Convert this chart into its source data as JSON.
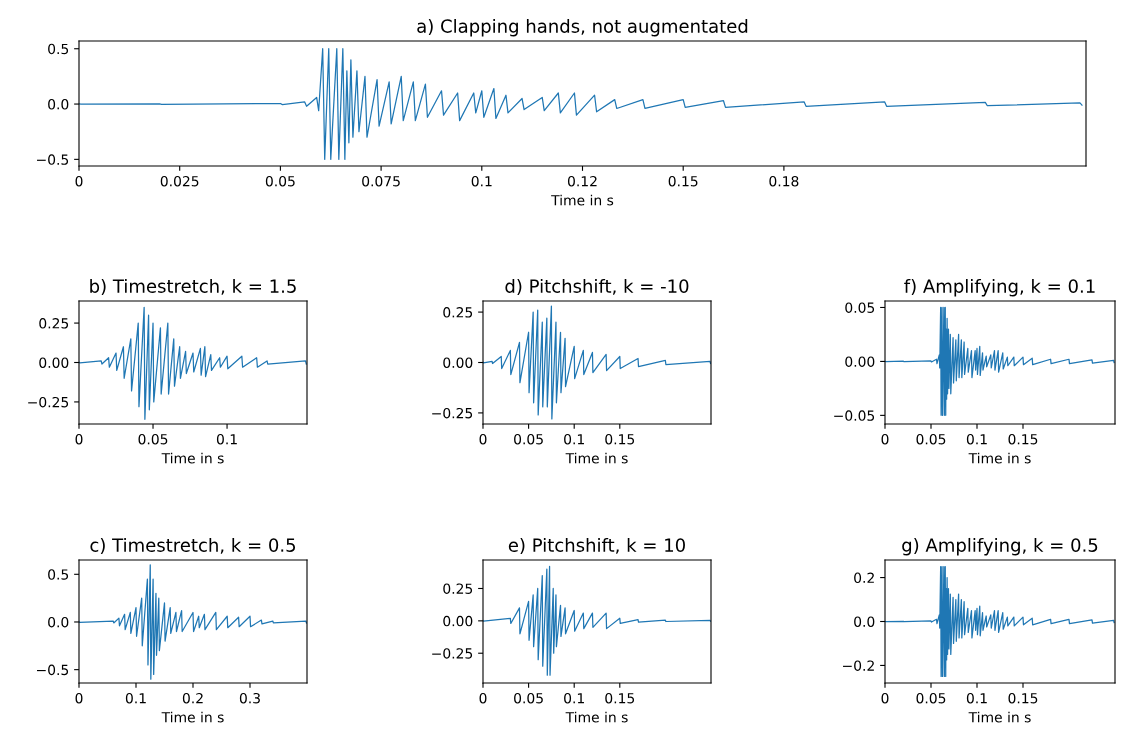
{
  "chart_data": [
    {
      "type": "line",
      "title": "a) Clapping hands, not augmentated",
      "xlabel": "Time in s",
      "xlim": [
        0,
        0.25
      ],
      "ylim": [
        -0.56,
        0.57
      ],
      "xticks": [
        0,
        0.025,
        0.05,
        0.075,
        0.1,
        {
          "value": 0.125,
          "label": "0.12"
        },
        0.15,
        {
          "value": 0.175,
          "label": "0.18"
        }
      ],
      "yticks": [
        {
          "value": -0.5,
          "label": "−0.5"
        },
        {
          "value": 0,
          "label": "0.0"
        },
        {
          "value": 0.5,
          "label": "0.5"
        }
      ],
      "x": [
        0,
        0.0005,
        0.02,
        0.0205,
        0.05,
        0.0505,
        0.056,
        0.0565,
        0.059,
        0.0595,
        0.0605,
        0.061,
        0.062,
        0.0625,
        0.064,
        0.0645,
        0.0655,
        0.066,
        0.0665,
        0.067,
        0.0675,
        0.068,
        0.069,
        0.0695,
        0.071,
        0.0715,
        0.074,
        0.0745,
        0.077,
        0.0775,
        0.08,
        0.0805,
        0.083,
        0.0835,
        0.086,
        0.0865,
        0.09,
        0.0905,
        0.094,
        0.0945,
        0.098,
        0.0985,
        0.1,
        0.1005,
        0.103,
        0.1035,
        0.106,
        0.1065,
        0.11,
        0.1105,
        0.115,
        0.1155,
        0.119,
        0.1195,
        0.123,
        0.1235,
        0.128,
        0.1285,
        0.133,
        0.1335,
        0.14,
        0.1405,
        0.15,
        0.1505,
        0.16,
        0.1605,
        0.18,
        0.1805,
        0.2,
        0.2005,
        0.225,
        0.2255,
        0.2485,
        0.249
      ],
      "series": [
        {
          "color": "#1f77b4",
          "values": [
            0.001,
            -0.001,
            0.002,
            -0.002,
            0.005,
            -0.005,
            0.02,
            -0.02,
            0.06,
            -0.06,
            0.5,
            -0.5,
            0.5,
            -0.5,
            0.5,
            -0.5,
            0.5,
            -0.5,
            0.3,
            -0.35,
            0.4,
            -0.3,
            0.3,
            -0.25,
            0.25,
            -0.3,
            0.22,
            -0.2,
            0.2,
            -0.18,
            0.25,
            -0.15,
            0.2,
            -0.15,
            0.18,
            -0.12,
            0.12,
            -0.1,
            0.1,
            -0.15,
            0.1,
            -0.08,
            0.12,
            -0.12,
            0.14,
            -0.13,
            0.08,
            -0.08,
            0.05,
            -0.05,
            0.06,
            -0.06,
            0.1,
            -0.08,
            0.1,
            -0.1,
            0.08,
            -0.07,
            0.04,
            -0.04,
            0.04,
            -0.04,
            0.04,
            -0.03,
            0.03,
            -0.03,
            0.02,
            -0.02,
            0.02,
            -0.02,
            0.015,
            -0.015,
            0.01,
            -0.01
          ]
        }
      ]
    },
    {
      "type": "line",
      "title": "b) Timestretch, k = 1.5",
      "xlabel": "Time in s",
      "xlim": [
        0,
        0.154
      ],
      "ylim": [
        -0.39,
        0.39
      ],
      "xticks": [
        0,
        0.05,
        0.1
      ],
      "yticks": [
        {
          "value": -0.25,
          "label": "−0.25"
        },
        {
          "value": 0,
          "label": "0.00"
        },
        {
          "value": 0.25,
          "label": "0.25"
        }
      ],
      "x": [
        0,
        0.0005,
        0.015,
        0.0155,
        0.02,
        0.0205,
        0.025,
        0.0255,
        0.03,
        0.0305,
        0.035,
        0.0355,
        0.04,
        0.0405,
        0.044,
        0.0445,
        0.047,
        0.0475,
        0.05,
        0.0505,
        0.055,
        0.0555,
        0.06,
        0.0605,
        0.064,
        0.0645,
        0.068,
        0.0685,
        0.072,
        0.0725,
        0.077,
        0.0775,
        0.082,
        0.0825,
        0.085,
        0.0855,
        0.089,
        0.0895,
        0.095,
        0.0955,
        0.1,
        0.1005,
        0.11,
        0.1105,
        0.12,
        0.1205,
        0.127,
        0.1275,
        0.153,
        0.1535
      ],
      "series": [
        {
          "color": "#1f77b4",
          "values": [
            0.002,
            -0.002,
            0.01,
            -0.01,
            0.03,
            -0.03,
            0.06,
            -0.05,
            0.1,
            -0.1,
            0.15,
            -0.18,
            0.25,
            -0.28,
            0.35,
            -0.36,
            0.3,
            -0.3,
            0.25,
            -0.25,
            0.22,
            -0.2,
            0.25,
            -0.2,
            0.15,
            -0.15,
            0.1,
            -0.1,
            0.07,
            -0.07,
            0.06,
            -0.06,
            0.09,
            -0.08,
            0.1,
            -0.09,
            0.05,
            -0.05,
            0.03,
            -0.03,
            0.04,
            -0.04,
            0.04,
            -0.03,
            0.03,
            -0.03,
            0.01,
            -0.01,
            0.01,
            -0.01
          ]
        }
      ]
    },
    {
      "type": "line",
      "title": "d) Pitchshift, k = -10",
      "xlabel": "Time in s",
      "xlim": [
        0,
        0.25
      ],
      "ylim": [
        -0.305,
        0.305
      ],
      "xticks": [
        0,
        0.05,
        0.1,
        0.15
      ],
      "yticks": [
        {
          "value": -0.25,
          "label": "−0.25"
        },
        {
          "value": 0,
          "label": "0.00"
        },
        {
          "value": 0.25,
          "label": "0.25"
        }
      ],
      "x": [
        0,
        0.0005,
        0.01,
        0.0105,
        0.02,
        0.0205,
        0.03,
        0.0305,
        0.04,
        0.0405,
        0.05,
        0.0505,
        0.055,
        0.0555,
        0.06,
        0.0605,
        0.065,
        0.0655,
        0.07,
        0.0705,
        0.075,
        0.0755,
        0.08,
        0.0805,
        0.085,
        0.0855,
        0.09,
        0.0905,
        0.1,
        0.1005,
        0.11,
        0.1105,
        0.12,
        0.1205,
        0.135,
        0.1355,
        0.15,
        0.1505,
        0.17,
        0.1705,
        0.2,
        0.2005,
        0.249,
        0.2495
      ],
      "series": [
        {
          "color": "#1f77b4",
          "values": [
            0.002,
            -0.002,
            0.005,
            -0.005,
            0.03,
            -0.03,
            0.06,
            -0.06,
            0.1,
            -0.1,
            0.15,
            -0.15,
            0.25,
            -0.2,
            0.26,
            -0.26,
            0.2,
            -0.22,
            0.22,
            -0.22,
            0.28,
            -0.28,
            0.2,
            -0.2,
            0.15,
            -0.15,
            0.12,
            -0.12,
            0.08,
            -0.08,
            0.06,
            -0.06,
            0.05,
            -0.05,
            0.04,
            -0.04,
            0.03,
            -0.03,
            0.02,
            -0.02,
            0.01,
            -0.01,
            0.005,
            -0.005
          ]
        }
      ]
    },
    {
      "type": "line",
      "title": "f) Amplifying, k = 0.1",
      "xlabel": "Time in s",
      "xlim": [
        0,
        0.25
      ],
      "ylim": [
        -0.058,
        0.056
      ],
      "xticks": [
        0,
        0.05,
        0.1,
        0.15
      ],
      "yticks": [
        {
          "value": -0.05,
          "label": "−0.05"
        },
        {
          "value": 0,
          "label": "0.00"
        },
        {
          "value": 0.05,
          "label": "0.05"
        }
      ],
      "x": [
        0,
        0.0005,
        0.02,
        0.0205,
        0.05,
        0.0505,
        0.056,
        0.0565,
        0.059,
        0.0595,
        0.0605,
        0.061,
        0.062,
        0.0625,
        0.064,
        0.0645,
        0.0655,
        0.066,
        0.0665,
        0.067,
        0.0675,
        0.068,
        0.069,
        0.0695,
        0.071,
        0.0715,
        0.074,
        0.0745,
        0.077,
        0.0775,
        0.08,
        0.0805,
        0.083,
        0.0835,
        0.086,
        0.0865,
        0.09,
        0.0905,
        0.094,
        0.0945,
        0.098,
        0.0985,
        0.1,
        0.1005,
        0.103,
        0.1035,
        0.106,
        0.1065,
        0.11,
        0.1105,
        0.115,
        0.1155,
        0.119,
        0.1195,
        0.123,
        0.1235,
        0.128,
        0.1285,
        0.133,
        0.1335,
        0.14,
        0.1405,
        0.15,
        0.1505,
        0.16,
        0.1605,
        0.18,
        0.1805,
        0.2,
        0.2005,
        0.225,
        0.2255,
        0.2485,
        0.249
      ],
      "series": [
        {
          "color": "#1f77b4",
          "values": [
            0.0001,
            -0.0001,
            0.0002,
            -0.0002,
            0.0005,
            -0.0005,
            0.002,
            -0.002,
            0.006,
            -0.006,
            0.05,
            -0.05,
            0.05,
            -0.05,
            0.05,
            -0.05,
            0.05,
            -0.05,
            0.03,
            -0.035,
            0.04,
            -0.03,
            0.03,
            -0.025,
            0.025,
            -0.03,
            0.022,
            -0.02,
            0.02,
            -0.018,
            0.025,
            -0.015,
            0.02,
            -0.015,
            0.018,
            -0.012,
            0.012,
            -0.01,
            0.01,
            -0.015,
            0.01,
            -0.008,
            0.012,
            -0.012,
            0.014,
            -0.013,
            0.008,
            -0.008,
            0.005,
            -0.005,
            0.006,
            -0.006,
            0.01,
            -0.008,
            0.01,
            -0.01,
            0.008,
            -0.007,
            0.004,
            -0.004,
            0.004,
            -0.004,
            0.004,
            -0.003,
            0.003,
            -0.003,
            0.002,
            -0.002,
            0.002,
            -0.002,
            0.0015,
            -0.0015,
            0.001,
            -0.001
          ]
        }
      ]
    },
    {
      "type": "line",
      "title": "c) Timestretch, k = 0.5",
      "xlabel": "Time in s",
      "xlim": [
        0,
        0.4
      ],
      "ylim": [
        -0.64,
        0.65
      ],
      "xticks": [
        0,
        0.1,
        0.2,
        0.3
      ],
      "yticks": [
        {
          "value": -0.5,
          "label": "−0.5"
        },
        {
          "value": 0,
          "label": "0.0"
        },
        {
          "value": 0.5,
          "label": "0.5"
        }
      ],
      "x": [
        0,
        0.001,
        0.06,
        0.061,
        0.07,
        0.071,
        0.08,
        0.081,
        0.09,
        0.091,
        0.1,
        0.101,
        0.11,
        0.111,
        0.12,
        0.121,
        0.125,
        0.126,
        0.13,
        0.131,
        0.135,
        0.136,
        0.14,
        0.141,
        0.15,
        0.151,
        0.16,
        0.161,
        0.17,
        0.171,
        0.18,
        0.181,
        0.2,
        0.201,
        0.21,
        0.211,
        0.22,
        0.221,
        0.24,
        0.241,
        0.26,
        0.261,
        0.28,
        0.281,
        0.3,
        0.301,
        0.32,
        0.321,
        0.34,
        0.341,
        0.398,
        0.399
      ],
      "series": [
        {
          "color": "#1f77b4",
          "values": [
            0.005,
            -0.005,
            0.01,
            -0.01,
            0.04,
            -0.04,
            0.08,
            -0.08,
            0.1,
            -0.12,
            0.15,
            -0.15,
            0.25,
            -0.25,
            0.45,
            -0.45,
            0.6,
            -0.6,
            0.45,
            -0.55,
            0.3,
            -0.35,
            0.25,
            -0.3,
            0.2,
            -0.2,
            0.15,
            -0.12,
            0.1,
            -0.1,
            0.12,
            -0.1,
            0.1,
            -0.1,
            0.06,
            -0.06,
            0.08,
            -0.08,
            0.1,
            -0.08,
            0.06,
            -0.06,
            0.05,
            -0.05,
            0.06,
            -0.05,
            0.02,
            -0.02,
            0.01,
            -0.01,
            0.01,
            -0.01
          ]
        }
      ]
    },
    {
      "type": "line",
      "title": "e) Pitchshift, k = 10",
      "xlabel": "Time in s",
      "xlim": [
        0,
        0.25
      ],
      "ylim": [
        -0.48,
        0.47
      ],
      "xticks": [
        0,
        0.05,
        0.1,
        0.15
      ],
      "yticks": [
        {
          "value": -0.25,
          "label": "−0.25"
        },
        {
          "value": 0,
          "label": "0.00"
        },
        {
          "value": 0.25,
          "label": "0.25"
        }
      ],
      "x": [
        0,
        0.0005,
        0.03,
        0.0305,
        0.04,
        0.0405,
        0.05,
        0.0505,
        0.055,
        0.0555,
        0.06,
        0.0605,
        0.065,
        0.0655,
        0.07,
        0.0705,
        0.073,
        0.0735,
        0.077,
        0.0775,
        0.08,
        0.0805,
        0.085,
        0.0855,
        0.09,
        0.0905,
        0.1,
        0.1005,
        0.11,
        0.1105,
        0.12,
        0.1205,
        0.135,
        0.1355,
        0.15,
        0.1505,
        0.17,
        0.1705,
        0.2,
        0.2005,
        0.249,
        0.2495
      ],
      "series": [
        {
          "color": "#1f77b4",
          "values": [
            0.002,
            -0.002,
            0.02,
            -0.02,
            0.1,
            -0.1,
            0.15,
            -0.15,
            0.2,
            -0.2,
            0.25,
            -0.3,
            0.35,
            -0.35,
            0.4,
            -0.42,
            0.42,
            -0.42,
            0.25,
            -0.25,
            0.2,
            -0.2,
            0.12,
            -0.12,
            0.1,
            -0.1,
            0.08,
            -0.08,
            0.06,
            -0.06,
            0.06,
            -0.05,
            0.06,
            -0.06,
            0.02,
            -0.02,
            0.01,
            -0.01,
            0.005,
            -0.005,
            0.003,
            -0.003
          ]
        }
      ]
    },
    {
      "type": "line",
      "title": "g) Amplifying, k = 0.5",
      "xlabel": "Time in s",
      "xlim": [
        0,
        0.25
      ],
      "ylim": [
        -0.28,
        0.28
      ],
      "xticks": [
        0,
        0.05,
        0.1,
        0.15
      ],
      "yticks": [
        {
          "value": -0.2,
          "label": "−0.2"
        },
        {
          "value": 0,
          "label": "0.0"
        },
        {
          "value": 0.2,
          "label": "0.2"
        }
      ],
      "x": [
        0,
        0.0005,
        0.02,
        0.0205,
        0.05,
        0.0505,
        0.056,
        0.0565,
        0.059,
        0.0595,
        0.0605,
        0.061,
        0.062,
        0.0625,
        0.064,
        0.0645,
        0.0655,
        0.066,
        0.0665,
        0.067,
        0.0675,
        0.068,
        0.069,
        0.0695,
        0.071,
        0.0715,
        0.074,
        0.0745,
        0.077,
        0.0775,
        0.08,
        0.0805,
        0.083,
        0.0835,
        0.086,
        0.0865,
        0.09,
        0.0905,
        0.094,
        0.0945,
        0.098,
        0.0985,
        0.1,
        0.1005,
        0.103,
        0.1035,
        0.106,
        0.1065,
        0.11,
        0.1105,
        0.115,
        0.1155,
        0.119,
        0.1195,
        0.123,
        0.1235,
        0.128,
        0.1285,
        0.133,
        0.1335,
        0.14,
        0.1405,
        0.15,
        0.1505,
        0.16,
        0.1605,
        0.18,
        0.1805,
        0.2,
        0.2005,
        0.225,
        0.2255,
        0.2485,
        0.249
      ],
      "series": [
        {
          "color": "#1f77b4",
          "values": [
            0.0005,
            -0.0005,
            0.001,
            -0.001,
            0.0025,
            -0.0025,
            0.01,
            -0.01,
            0.03,
            -0.03,
            0.25,
            -0.25,
            0.25,
            -0.25,
            0.25,
            -0.25,
            0.25,
            -0.25,
            0.15,
            -0.175,
            0.2,
            -0.15,
            0.15,
            -0.125,
            0.125,
            -0.15,
            0.11,
            -0.1,
            0.1,
            -0.09,
            0.125,
            -0.075,
            0.1,
            -0.075,
            0.09,
            -0.06,
            0.06,
            -0.05,
            0.05,
            -0.075,
            0.05,
            -0.04,
            0.06,
            -0.06,
            0.07,
            -0.065,
            0.04,
            -0.04,
            0.025,
            -0.025,
            0.03,
            -0.03,
            0.05,
            -0.04,
            0.05,
            -0.05,
            0.04,
            -0.035,
            0.02,
            -0.02,
            0.02,
            -0.02,
            0.02,
            -0.015,
            0.015,
            -0.015,
            0.01,
            -0.01,
            0.01,
            -0.01,
            0.0075,
            -0.0075,
            0.005,
            -0.005
          ]
        }
      ]
    }
  ]
}
